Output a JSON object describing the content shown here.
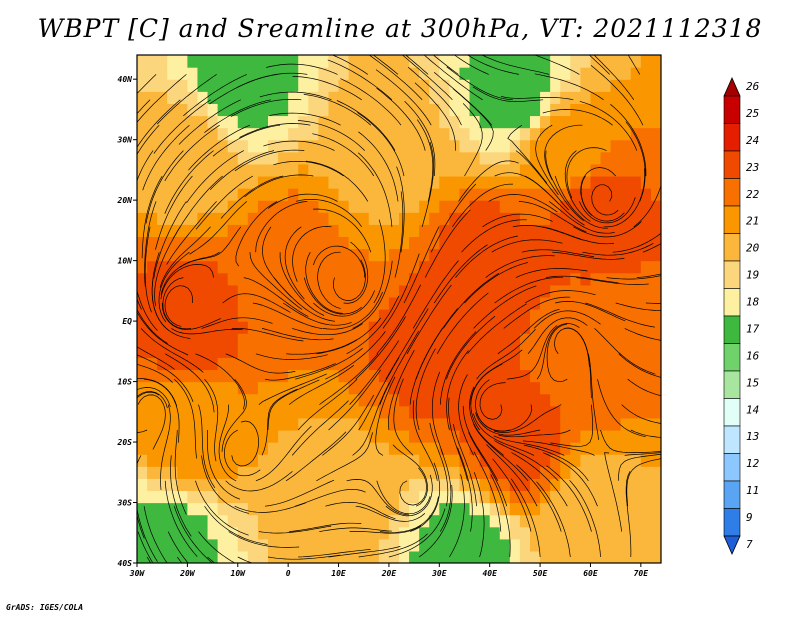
{
  "title": "WBPT [C] and Sreamline at 300hPa, VT: 2021112318",
  "footer": "GrADS: IGES/COLA",
  "chart_data": {
    "type": "heatmap",
    "title": "WBPT [C] and Sreamline at 300hPa, VT: 2021112318",
    "x_ticks": [
      "30W",
      "20W",
      "10W",
      "0",
      "10E",
      "20E",
      "30E",
      "40E",
      "50E",
      "60E",
      "70E"
    ],
    "y_ticks": [
      "40S",
      "30S",
      "20S",
      "10S",
      "EQ",
      "10N",
      "20N",
      "30N",
      "40N"
    ],
    "x_range": [
      -30,
      74
    ],
    "y_range": [
      -40,
      44
    ],
    "colorbar": {
      "labels": [
        "26",
        "25",
        "24",
        "23",
        "22",
        "21",
        "20",
        "19",
        "18",
        "17",
        "16",
        "15",
        "14",
        "13",
        "12",
        "11",
        "9",
        "7"
      ],
      "colors": [
        "#a50000",
        "#c80000",
        "#e61e00",
        "#f04a00",
        "#f87000",
        "#fa9600",
        "#fbb73b",
        "#fcd67c",
        "#fdf0a0",
        "#3fb83f",
        "#70d26a",
        "#a8e6a0",
        "#e2fff7",
        "#bfe6ff",
        "#8cc8ff",
        "#5aa4f4",
        "#2f7ee8",
        "#1e5ed8"
      ]
    },
    "regions": [
      {
        "lon": -10,
        "lat": 40,
        "value": 17
      },
      {
        "lon": 45,
        "lat": 38,
        "value": 17
      },
      {
        "lon": -20,
        "lat": 28,
        "value": 20
      },
      {
        "lon": 20,
        "lat": 28,
        "value": 20
      },
      {
        "lon": 55,
        "lat": 28,
        "value": 21
      },
      {
        "lon": 60,
        "lat": 18,
        "value": 23
      },
      {
        "lon": 40,
        "lat": 10,
        "value": 23
      },
      {
        "lon": 0,
        "lat": 10,
        "value": 22
      },
      {
        "lon": -20,
        "lat": 0,
        "value": 23
      },
      {
        "lon": 30,
        "lat": -5,
        "value": 23
      },
      {
        "lon": 60,
        "lat": -5,
        "value": 22
      },
      {
        "lon": -20,
        "lat": -18,
        "value": 21
      },
      {
        "lon": 45,
        "lat": -20,
        "value": 23
      },
      {
        "lon": 10,
        "lat": -30,
        "value": 20
      },
      {
        "lon": 60,
        "lat": -32,
        "value": 20
      },
      {
        "lon": -25,
        "lat": -37,
        "value": 17
      },
      {
        "lon": 35,
        "lat": -38,
        "value": 17
      }
    ]
  }
}
